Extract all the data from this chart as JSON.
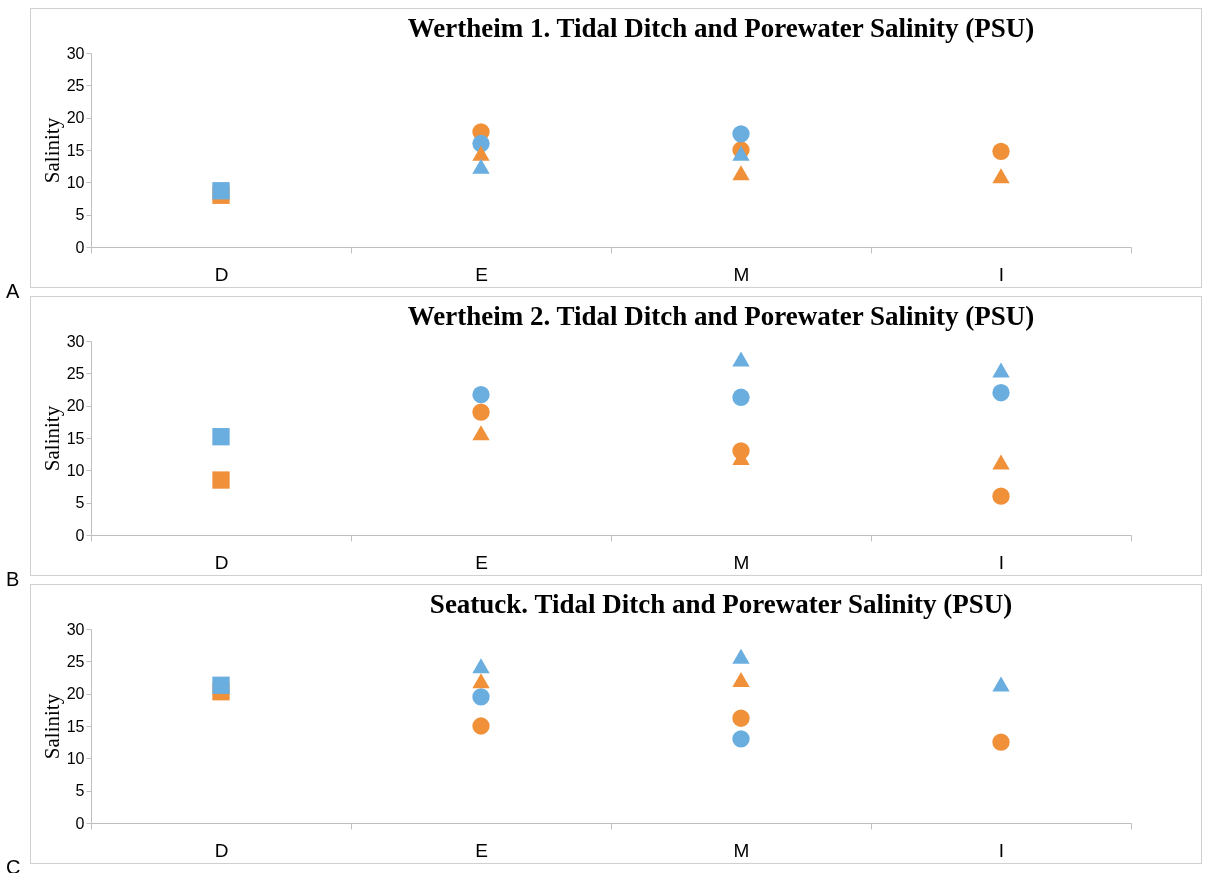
{
  "chart_data": [
    {
      "type": "scatter",
      "title": "Wertheim 1. Tidal Ditch and Porewater Salinity (PSU)",
      "ylabel": "Salinity",
      "categories": [
        "D",
        "E",
        "M",
        "I"
      ],
      "ylim": [
        0,
        30
      ],
      "yticks": [
        0,
        5,
        10,
        15,
        20,
        25,
        30
      ],
      "annotations": [
        "A"
      ],
      "series": [
        {
          "color": "#f0913a",
          "marker": "square",
          "values": [
            8,
            null,
            null,
            null
          ]
        },
        {
          "color": "#6aaee0",
          "marker": "square",
          "values": [
            8.7,
            null,
            null,
            null
          ]
        },
        {
          "color": "#f0913a",
          "marker": "circle",
          "values": [
            null,
            17.8,
            15,
            14.8
          ]
        },
        {
          "color": "#6aaee0",
          "marker": "circle",
          "values": [
            null,
            16,
            17.5,
            null
          ]
        },
        {
          "color": "#f0913a",
          "marker": "triangle",
          "values": [
            null,
            14.5,
            11.5,
            11
          ]
        },
        {
          "color": "#6aaee0",
          "marker": "triangle",
          "values": [
            null,
            12.5,
            14.5,
            null
          ]
        }
      ]
    },
    {
      "type": "scatter",
      "title": "Wertheim 2. Tidal Ditch and Porewater Salinity (PSU)",
      "ylabel": "Salinity",
      "categories": [
        "D",
        "E",
        "M",
        "I"
      ],
      "ylim": [
        0,
        30
      ],
      "yticks": [
        0,
        5,
        10,
        15,
        20,
        25,
        30
      ],
      "annotations": [
        "B"
      ],
      "series": [
        {
          "color": "#f0913a",
          "marker": "square",
          "values": [
            8.5,
            null,
            null,
            null
          ]
        },
        {
          "color": "#6aaee0",
          "marker": "square",
          "values": [
            15.2,
            null,
            null,
            null
          ]
        },
        {
          "color": "#f0913a",
          "marker": "circle",
          "values": [
            null,
            19,
            13,
            6
          ]
        },
        {
          "color": "#6aaee0",
          "marker": "circle",
          "values": [
            null,
            21.7,
            21.3,
            22
          ]
        },
        {
          "color": "#f0913a",
          "marker": "triangle",
          "values": [
            null,
            15.8,
            12,
            11.3
          ]
        },
        {
          "color": "#6aaee0",
          "marker": "triangle",
          "values": [
            null,
            null,
            27.2,
            25.5
          ]
        }
      ]
    },
    {
      "type": "scatter",
      "title": "Seatuck. Tidal Ditch and Porewater Salinity  (PSU)",
      "ylabel": "Salinity",
      "categories": [
        "D",
        "E",
        "M",
        "I"
      ],
      "ylim": [
        0,
        30
      ],
      "yticks": [
        0,
        5,
        10,
        15,
        20,
        25,
        30
      ],
      "annotations": [
        "C"
      ],
      "series": [
        {
          "color": "#f0913a",
          "marker": "square",
          "values": [
            20.3,
            null,
            null,
            null
          ]
        },
        {
          "color": "#6aaee0",
          "marker": "square",
          "values": [
            21.3,
            null,
            null,
            null
          ]
        },
        {
          "color": "#f0913a",
          "marker": "circle",
          "values": [
            null,
            15,
            16.2,
            12.5
          ]
        },
        {
          "color": "#6aaee0",
          "marker": "circle",
          "values": [
            null,
            19.5,
            13,
            null
          ]
        },
        {
          "color": "#f0913a",
          "marker": "triangle",
          "values": [
            null,
            22,
            22.2,
            null
          ]
        },
        {
          "color": "#6aaee0",
          "marker": "triangle",
          "values": [
            null,
            24.3,
            25.8,
            21.5
          ]
        }
      ]
    }
  ]
}
